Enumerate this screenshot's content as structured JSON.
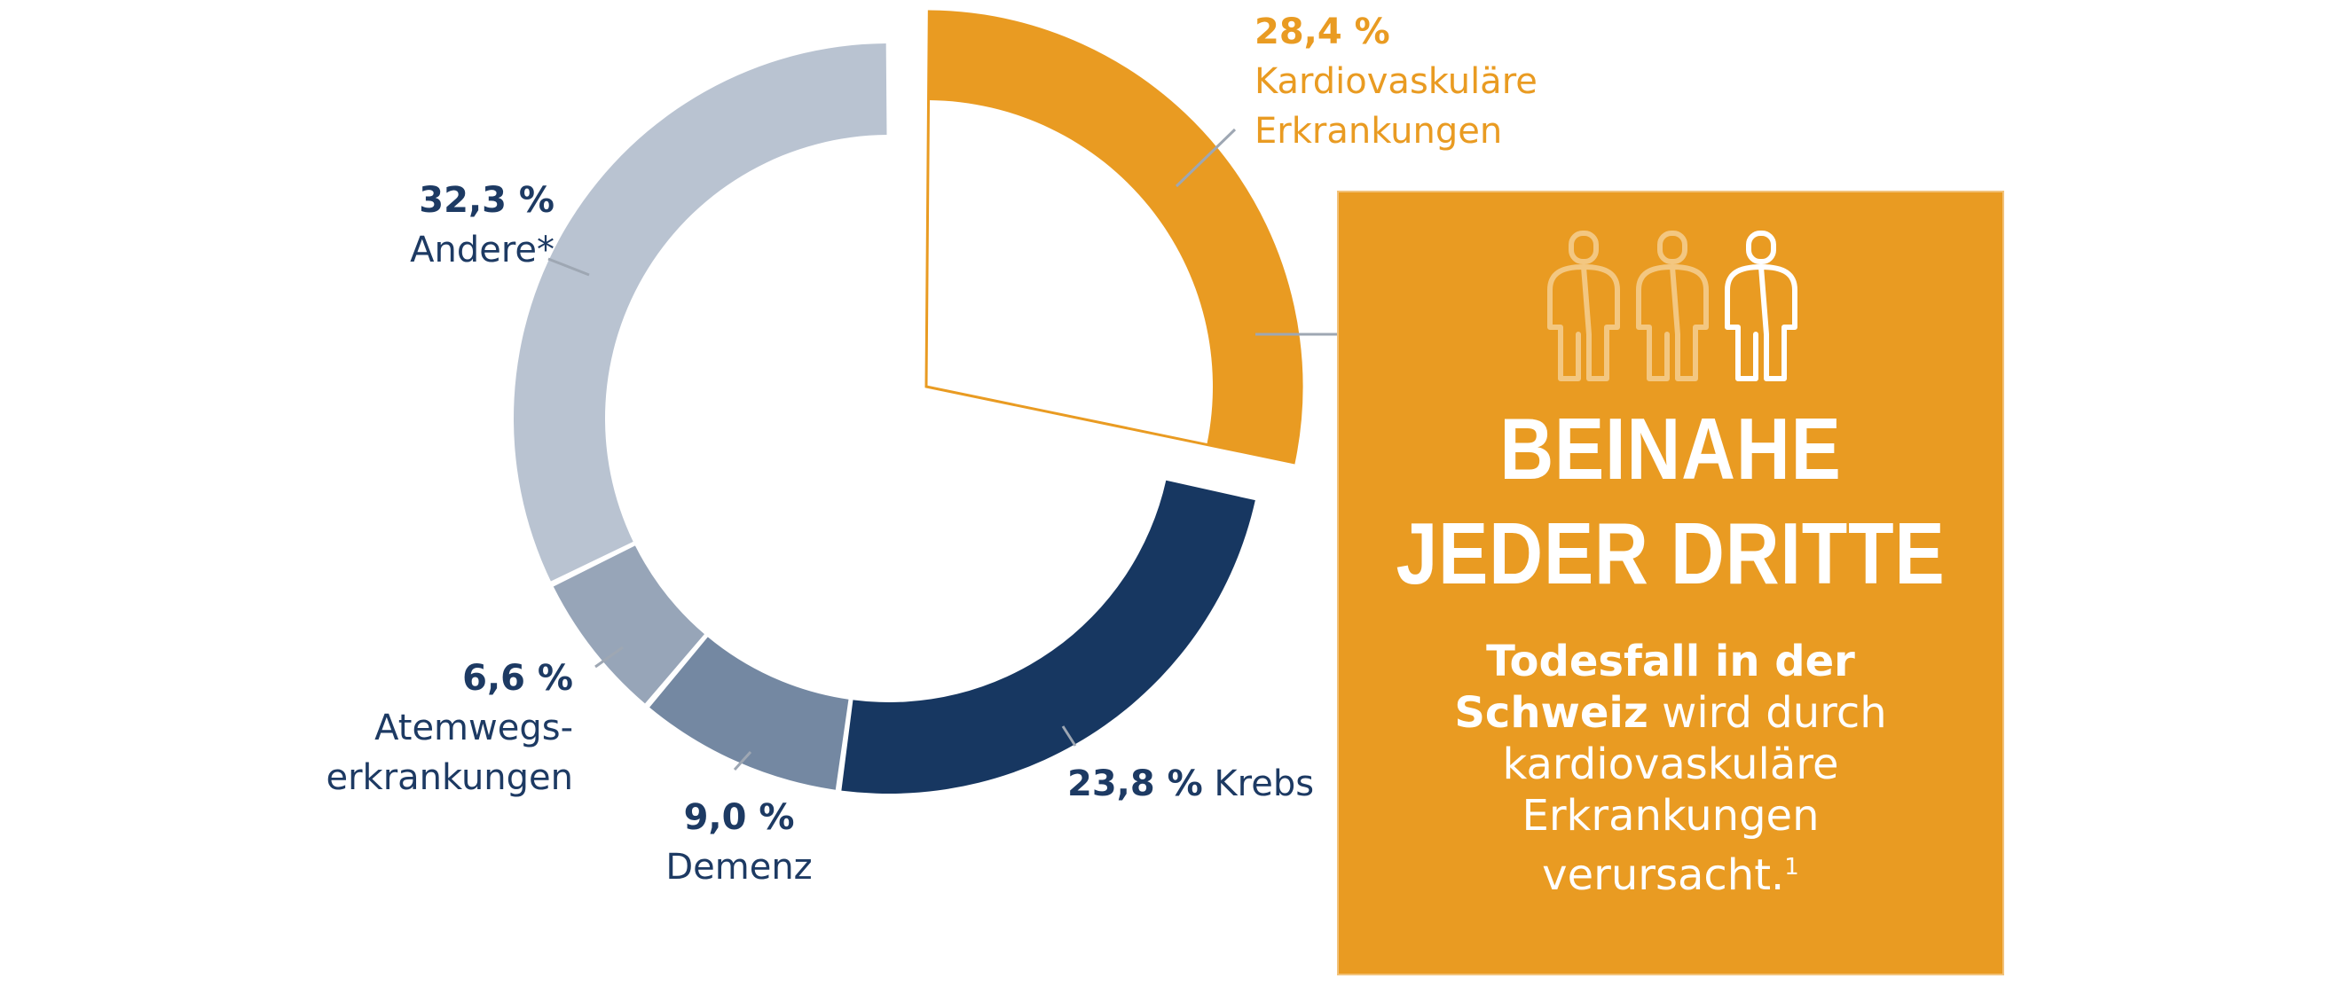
{
  "colors": {
    "kardio": "#e99b22",
    "krebs": "#173761",
    "demenz": "#7488a2",
    "atemwege": "#97a5b8",
    "andere": "#b9c3d1",
    "label_dark": "#1d3a63",
    "leader_line": "#9ea7b3"
  },
  "chart_data": {
    "type": "pie",
    "variant": "donut",
    "highlighted": "Kardiovaskuläre Erkrankungen",
    "slices": [
      {
        "key": "kardio",
        "label": "Kardiovaskuläre Erkrankungen",
        "value": 28.4,
        "value_text": "28,4 %",
        "color": "#e99b22"
      },
      {
        "key": "krebs",
        "label": "Krebs",
        "value": 23.8,
        "value_text": "23,8 %",
        "color": "#173761"
      },
      {
        "key": "demenz",
        "label": "Demenz",
        "value": 9.0,
        "value_text": "9,0 %",
        "color": "#7488a2"
      },
      {
        "key": "atemwege",
        "label": "Atemwegs-erkrankungen",
        "value": 6.6,
        "value_text": "6,6 %",
        "color": "#97a5b8"
      },
      {
        "key": "andere",
        "label": "Andere*",
        "value": 32.3,
        "value_text": "32,3 %",
        "color": "#b9c3d1"
      }
    ]
  },
  "labels": {
    "kardio_pct": "28,4 %",
    "kardio_line1": "Kardiovaskuläre",
    "kardio_line2": "Erkrankungen",
    "andere_pct": "32,3 %",
    "andere_name": "Andere*",
    "atemwege_pct": "6,6 %",
    "atemwege_line1": "Atemwegs-",
    "atemwege_line2": "erkrankungen",
    "demenz_pct": "9,0 %",
    "demenz_name": "Demenz",
    "krebs_pct": "23,8 %",
    "krebs_name": "Krebs"
  },
  "info_box": {
    "icon": "three-people-icon",
    "headline_line1": "BEINAHE",
    "headline_line2": "JEDER DRITTE",
    "text_bold_1": "Todesfall in der",
    "text_bold_2": "Schweiz",
    "text_rest_2": " wird durch",
    "text_line3": "kardiovaskuläre",
    "text_line4": "Erkrankungen",
    "text_line5": "verursacht.",
    "footnote_mark": "1"
  }
}
